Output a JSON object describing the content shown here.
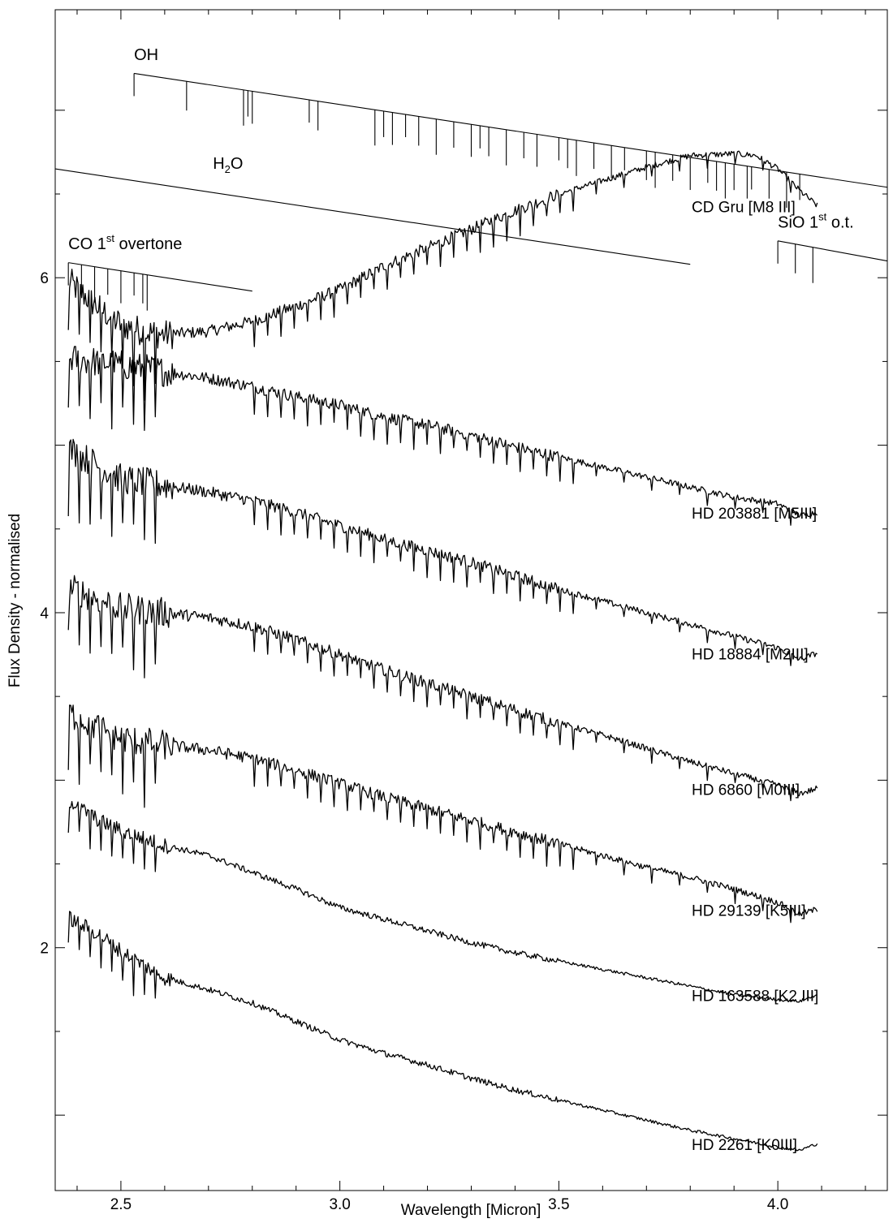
{
  "chart_data": {
    "type": "line",
    "xlabel": "Wavelength [Micron]",
    "ylabel": "Flux Density - normalised",
    "xlim": [
      2.35,
      4.25
    ],
    "ylim": [
      0.55,
      7.6
    ],
    "x_ticks": [
      2.5,
      3.0,
      3.5,
      4.0
    ],
    "x_tick_labels": [
      "2.5",
      "3.0",
      "3.5",
      "4.0"
    ],
    "y_ticks": [
      1,
      2,
      3,
      4,
      5,
      6,
      7
    ],
    "y_tick_labels": [
      "",
      "2",
      "",
      "4",
      "",
      "6",
      ""
    ],
    "grid": false,
    "series": [
      {
        "name": "CD Gru [M8 III]",
        "x": [
          2.38,
          2.45,
          2.5,
          2.55,
          2.6,
          2.7,
          2.8,
          2.9,
          3.0,
          3.1,
          3.2,
          3.3,
          3.4,
          3.5,
          3.6,
          3.7,
          3.8,
          3.9,
          3.95,
          4.0,
          4.05,
          4.09
        ],
        "y": [
          5.98,
          5.82,
          5.72,
          5.68,
          5.66,
          5.68,
          5.74,
          5.83,
          5.93,
          6.07,
          6.18,
          6.29,
          6.4,
          6.5,
          6.58,
          6.66,
          6.73,
          6.74,
          6.73,
          6.65,
          6.52,
          6.43
        ]
      },
      {
        "name": "HD 203881 [M5III]",
        "x": [
          2.38,
          2.5,
          2.6,
          2.7,
          2.8,
          2.9,
          3.0,
          3.1,
          3.2,
          3.3,
          3.4,
          3.5,
          3.6,
          3.7,
          3.8,
          3.9,
          4.0,
          4.05,
          4.09
        ],
        "y": [
          5.52,
          5.48,
          5.44,
          5.4,
          5.35,
          5.29,
          5.24,
          5.17,
          5.12,
          5.06,
          4.99,
          4.93,
          4.87,
          4.81,
          4.75,
          4.69,
          4.65,
          4.58,
          4.6
        ]
      },
      {
        "name": "HD 18884 [M2III]",
        "x": [
          2.38,
          2.5,
          2.6,
          2.7,
          2.8,
          2.9,
          3.0,
          3.1,
          3.2,
          3.3,
          3.4,
          3.5,
          3.6,
          3.7,
          3.8,
          3.9,
          4.0,
          4.05,
          4.09
        ],
        "y": [
          4.98,
          4.8,
          4.76,
          4.72,
          4.67,
          4.6,
          4.52,
          4.44,
          4.37,
          4.3,
          4.22,
          4.14,
          4.07,
          4.0,
          3.93,
          3.86,
          3.79,
          3.72,
          3.76
        ]
      },
      {
        "name": "HD 6860 [M0III]",
        "x": [
          2.38,
          2.5,
          2.6,
          2.7,
          2.8,
          2.9,
          3.0,
          3.1,
          3.2,
          3.3,
          3.4,
          3.5,
          3.6,
          3.7,
          3.8,
          3.9,
          4.0,
          4.05,
          4.09
        ],
        "y": [
          4.15,
          4.03,
          4.0,
          3.97,
          3.92,
          3.84,
          3.75,
          3.66,
          3.58,
          3.5,
          3.42,
          3.34,
          3.27,
          3.19,
          3.11,
          3.04,
          2.97,
          2.92,
          2.95
        ]
      },
      {
        "name": "HD 29139 [K5III]",
        "x": [
          2.38,
          2.5,
          2.6,
          2.7,
          2.8,
          2.9,
          3.0,
          3.1,
          3.2,
          3.3,
          3.4,
          3.5,
          3.6,
          3.7,
          3.8,
          3.9,
          4.0,
          4.05,
          4.09
        ],
        "y": [
          3.4,
          3.25,
          3.21,
          3.18,
          3.13,
          3.06,
          2.98,
          2.9,
          2.83,
          2.76,
          2.69,
          2.62,
          2.55,
          2.48,
          2.42,
          2.35,
          2.27,
          2.2,
          2.23
        ]
      },
      {
        "name": "HD 163588 [K2 III]",
        "x": [
          2.38,
          2.45,
          2.5,
          2.6,
          2.7,
          2.8,
          2.9,
          3.0,
          3.1,
          3.2,
          3.3,
          3.4,
          3.5,
          3.6,
          3.7,
          3.8,
          3.9,
          4.0,
          4.05,
          4.09
        ],
        "y": [
          2.88,
          2.76,
          2.7,
          2.61,
          2.55,
          2.45,
          2.35,
          2.24,
          2.17,
          2.1,
          2.03,
          1.97,
          1.92,
          1.87,
          1.82,
          1.77,
          1.72,
          1.69,
          1.68,
          1.72
        ]
      },
      {
        "name": "HD 2261 [K0III]",
        "x": [
          2.38,
          2.45,
          2.5,
          2.6,
          2.7,
          2.8,
          2.9,
          3.0,
          3.1,
          3.2,
          3.3,
          3.4,
          3.5,
          3.6,
          3.7,
          3.8,
          3.9,
          4.0,
          4.05,
          4.09
        ],
        "y": [
          2.18,
          2.08,
          1.98,
          1.82,
          1.75,
          1.67,
          1.56,
          1.45,
          1.37,
          1.3,
          1.22,
          1.15,
          1.09,
          1.03,
          0.97,
          0.91,
          0.86,
          0.81,
          0.79,
          0.83
        ]
      }
    ],
    "annotations": [
      {
        "label_main": "OH",
        "label_sup": "",
        "label_sub": "",
        "label_end": "",
        "line": {
          "x": [
            2.53,
            4.25
          ],
          "y": [
            7.22,
            6.54
          ]
        },
        "label_at": {
          "x": 2.53,
          "y": 7.3
        },
        "ticks_x": [
          2.53,
          2.65,
          2.78,
          2.79,
          2.8,
          2.93,
          2.95,
          3.08,
          3.1,
          3.12,
          3.15,
          3.18,
          3.22,
          3.26,
          3.3,
          3.32,
          3.34,
          3.38,
          3.42,
          3.45,
          3.5,
          3.52,
          3.54,
          3.58,
          3.62,
          3.65,
          3.7,
          3.72,
          3.76,
          3.8,
          3.84,
          3.86,
          3.88,
          3.9,
          3.93,
          3.94,
          3.98,
          4.02,
          4.05
        ]
      },
      {
        "label_main": "H",
        "label_sub": "2",
        "label_end": "O",
        "label_sup": "",
        "line": {
          "x": [
            2.35,
            3.8
          ],
          "y": [
            6.65,
            6.08
          ]
        },
        "label_at": {
          "x": 2.71,
          "y": 6.65
        },
        "ticks_x": []
      },
      {
        "label_main": "CO 1",
        "label_sup": "st",
        "label_sub": "",
        "label_end": " overtone",
        "line": {
          "x": [
            2.38,
            2.8
          ],
          "y": [
            6.09,
            5.92
          ]
        },
        "label_at": {
          "x": 2.38,
          "y": 6.17
        },
        "ticks_x": [
          2.38,
          2.41,
          2.44,
          2.47,
          2.5,
          2.53,
          2.55,
          2.56
        ]
      },
      {
        "label_main": "SiO 1",
        "label_sup": "st",
        "label_sub": "",
        "label_end": " o.t.",
        "line": {
          "x": [
            4.0,
            4.25
          ],
          "y": [
            6.22,
            6.1
          ]
        },
        "label_at": {
          "x": 4.0,
          "y": 6.3
        },
        "ticks_x": [
          4.0,
          4.04,
          4.08
        ]
      }
    ]
  }
}
